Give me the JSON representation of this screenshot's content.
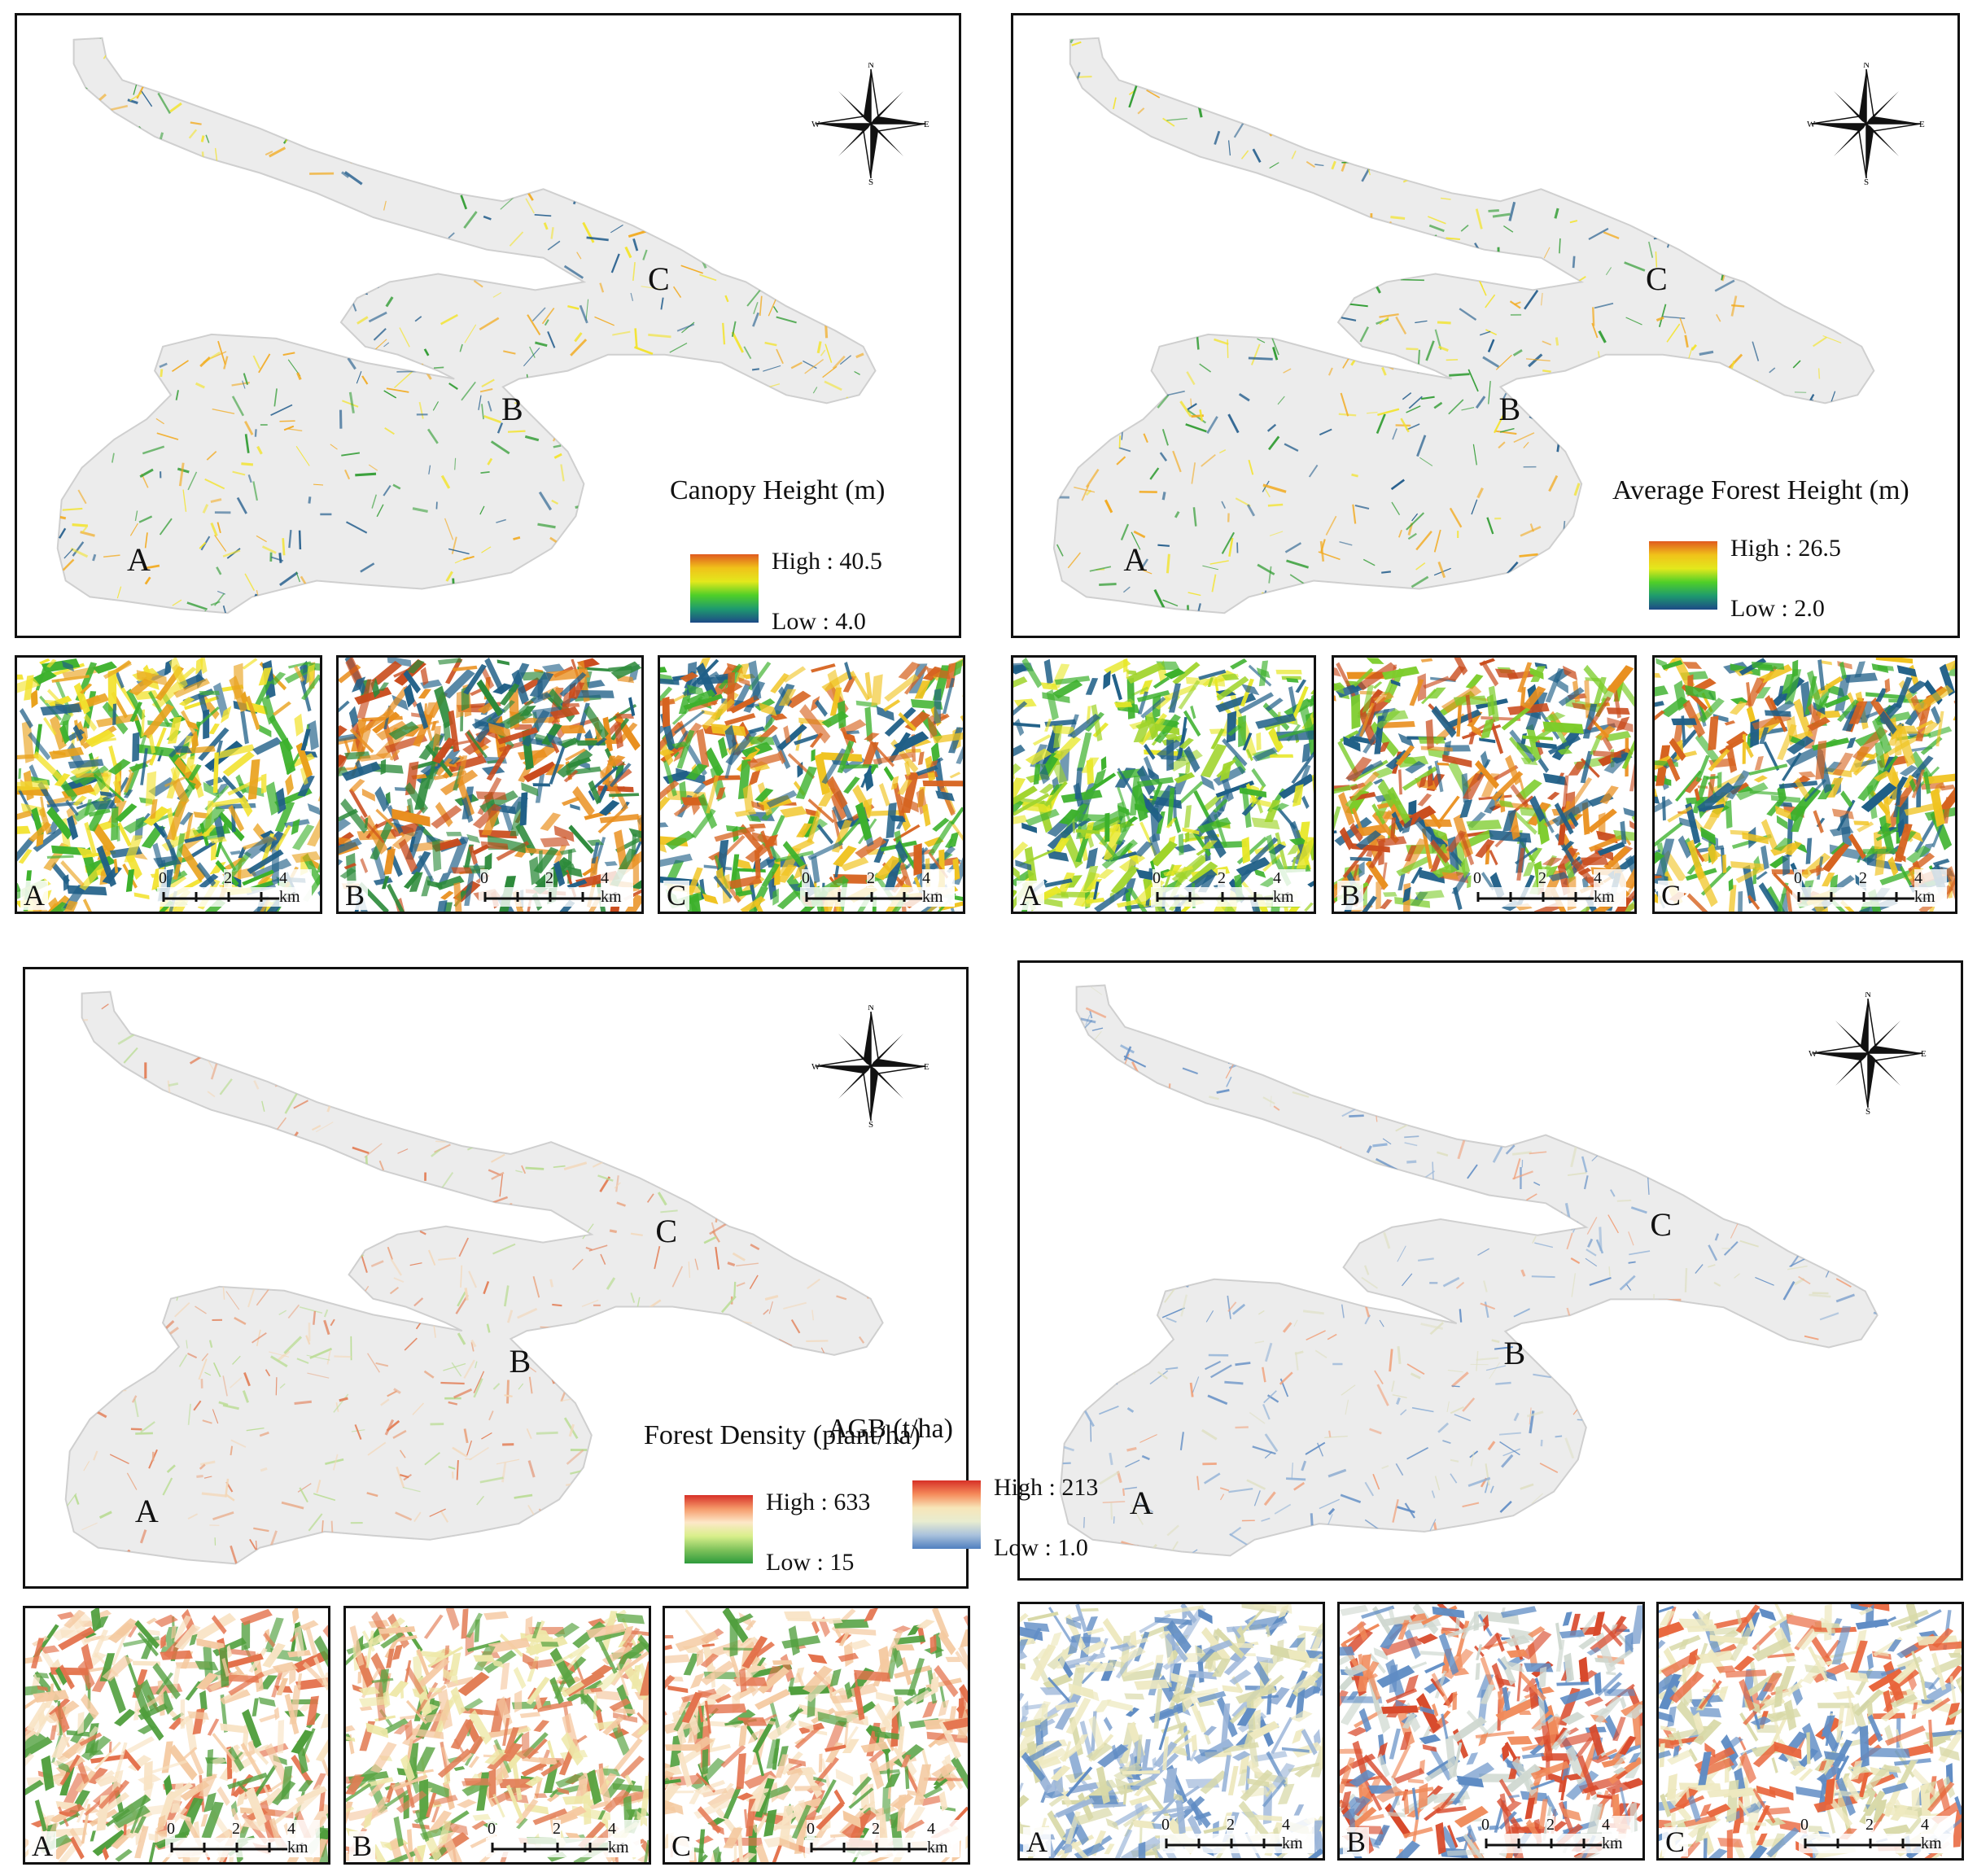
{
  "panels": [
    {
      "id": "canopy",
      "title": "Canopy Height (m)",
      "legend": {
        "high": "High : 40.5",
        "low": "Low : 4.0"
      },
      "ramp": [
        "#e05a1f",
        "#f0c21a",
        "#e3e81c",
        "#4fcf28",
        "#1e9a6e",
        "#1d4a86"
      ],
      "region_color": "#ececec",
      "texture": [
        "#2c9a2e",
        "#f3e32a",
        "#f2a91c",
        "#1f5a8a"
      ],
      "insets": [
        {
          "letter": "A",
          "colors": [
            "#f2e22d",
            "#3cb12c",
            "#1f5f87",
            "#e9a21d"
          ]
        },
        {
          "letter": "B",
          "colors": [
            "#c94b1c",
            "#e98f1e",
            "#2c8a3a",
            "#1f5f87"
          ]
        },
        {
          "letter": "C",
          "colors": [
            "#f0c320",
            "#3cb12c",
            "#1f5f87",
            "#d6621e"
          ]
        }
      ]
    },
    {
      "id": "avgheight",
      "title": "Average Forest Height (m)",
      "legend": {
        "high": "High : 26.5",
        "low": "Low : 2.0"
      },
      "ramp": [
        "#e05a1f",
        "#f0c21a",
        "#e3e81c",
        "#4fcf28",
        "#1e9a6e",
        "#1d4a86"
      ],
      "region_color": "#ececec",
      "texture": [
        "#2c9a2e",
        "#f3e32a",
        "#f2a91c",
        "#1f5a8a"
      ],
      "insets": [
        {
          "letter": "A",
          "colors": [
            "#e7e726",
            "#3cb12c",
            "#1f5f87",
            "#9fd42a"
          ]
        },
        {
          "letter": "B",
          "colors": [
            "#c94b1c",
            "#e98f1e",
            "#7ccc2a",
            "#1f5f87"
          ]
        },
        {
          "letter": "C",
          "colors": [
            "#f0c320",
            "#3cb12c",
            "#1f5f87",
            "#d6621e"
          ]
        }
      ]
    },
    {
      "id": "density",
      "title": "Forest Density (plant/ha)",
      "legend": {
        "high": "High : 633",
        "low": "Low : 15"
      },
      "ramp": [
        "#d73027",
        "#f59a6a",
        "#fde8c8",
        "#d9ef8b",
        "#7fc25b",
        "#2e9a3c"
      ],
      "region_color": "#ececec",
      "texture": [
        "#e9a784",
        "#f3d7b8",
        "#b9dc93",
        "#e27d55"
      ],
      "insets": [
        {
          "letter": "A",
          "colors": [
            "#e3704a",
            "#f4c9a0",
            "#4f9e3c",
            "#f8e3c4"
          ]
        },
        {
          "letter": "B",
          "colors": [
            "#eee8a8",
            "#e27d55",
            "#5aa442",
            "#f5c8a0"
          ]
        },
        {
          "letter": "C",
          "colors": [
            "#e3704a",
            "#f4c9a0",
            "#4f9e3c",
            "#f8e3c4"
          ]
        }
      ]
    },
    {
      "id": "agb",
      "title": "AGB (t/ha)",
      "legend": {
        "high": "High : 213",
        "low": "Low : 1.0"
      },
      "ramp": [
        "#d73027",
        "#f58a5a",
        "#f7e5b8",
        "#e8ecd0",
        "#a9c1dc",
        "#4f7fbf"
      ],
      "region_color": "#ececec",
      "texture": [
        "#8fb0d6",
        "#dfe0c4",
        "#f0a07a",
        "#5f8cc4"
      ],
      "insets": [
        {
          "letter": "A",
          "colors": [
            "#d8d9a8",
            "#5f8cc4",
            "#eee9c0",
            "#9bb5d8"
          ]
        },
        {
          "letter": "B",
          "colors": [
            "#d84a2c",
            "#f08a5a",
            "#5f8cc4",
            "#cfd8d0"
          ]
        },
        {
          "letter": "C",
          "colors": [
            "#d8d9a8",
            "#5f8cc4",
            "#e8643a",
            "#eee9c0"
          ]
        }
      ]
    }
  ],
  "compass": {
    "n": "N",
    "s": "S",
    "e": "E",
    "w": "W"
  },
  "site_labels": {
    "a": "A",
    "b": "B",
    "c": "C"
  },
  "scalebar": {
    "t0": "0",
    "t1": "2",
    "t2": "4 km"
  }
}
